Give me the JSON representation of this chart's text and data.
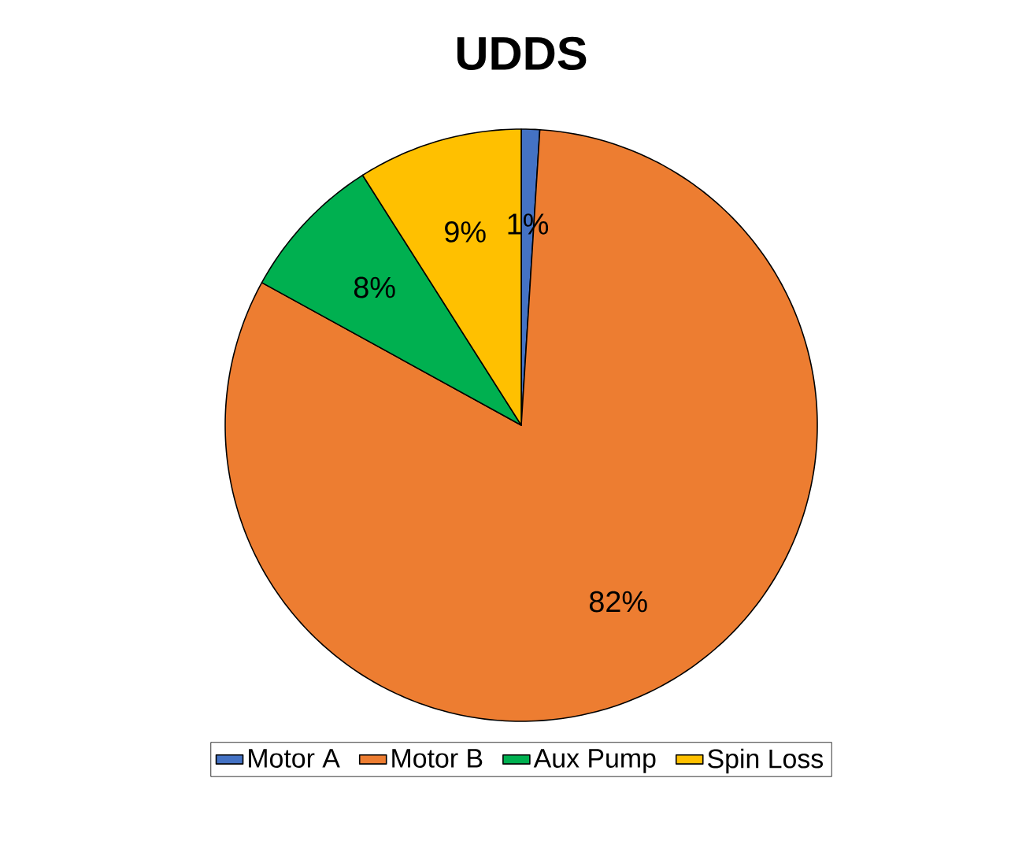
{
  "chart_data": {
    "type": "pie",
    "title": "UDDS",
    "categories": [
      "Motor A",
      "Motor B",
      "Aux Pump",
      "Spin Loss"
    ],
    "values": [
      1,
      82,
      8,
      9
    ],
    "colors": [
      "#4472c4",
      "#ed7d31",
      "#00b050",
      "#ffc000"
    ],
    "value_labels": [
      "1%",
      "82%",
      "8%",
      "9%"
    ],
    "legend": "bottom"
  }
}
